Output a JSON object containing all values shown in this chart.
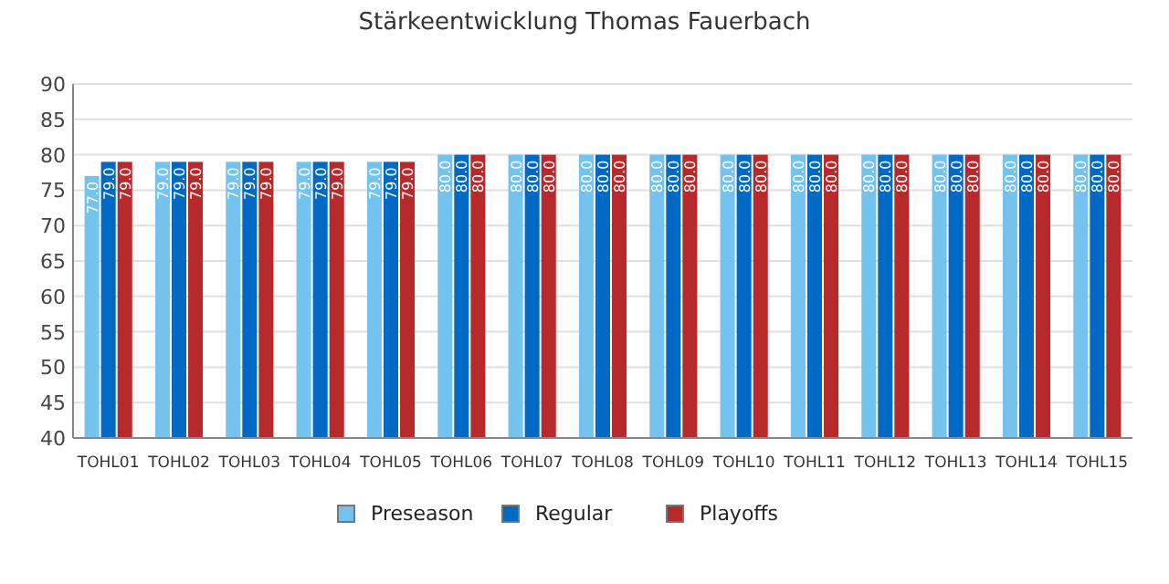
{
  "chart_data": {
    "type": "bar",
    "title": "Stärkeentwicklung Thomas Fauerbach",
    "categories": [
      "TOHL01",
      "TOHL02",
      "TOHL03",
      "TOHL04",
      "TOHL05",
      "TOHL06",
      "TOHL07",
      "TOHL08",
      "TOHL09",
      "TOHL10",
      "TOHL11",
      "TOHL12",
      "TOHL13",
      "TOHL14",
      "TOHL15"
    ],
    "series": [
      {
        "name": "Preseason",
        "color": "#74c3ef",
        "values": [
          77,
          79,
          79,
          79,
          79,
          80,
          80,
          80,
          80,
          80,
          80,
          80,
          80,
          80,
          80
        ],
        "value_labels": [
          "77.0",
          "79.0",
          "79.0",
          "79.0",
          "79.0",
          "80.0",
          "80.0",
          "80.0",
          "80.0",
          "80.0",
          "80.0",
          "80.0",
          "80.0",
          "80.0",
          "80.0"
        ]
      },
      {
        "name": "Regular",
        "color": "#0069c3",
        "values": [
          79,
          79,
          79,
          79,
          79,
          80,
          80,
          80,
          80,
          80,
          80,
          80,
          80,
          80,
          80
        ],
        "value_labels": [
          "79.0",
          "79.0",
          "79.0",
          "79.0",
          "79.0",
          "80.0",
          "80.0",
          "80.0",
          "80.0",
          "80.0",
          "80.0",
          "80.0",
          "80.0",
          "80.0",
          "80.0"
        ]
      },
      {
        "name": "Playoffs",
        "color": "#b8292b",
        "values": [
          79,
          79,
          79,
          79,
          79,
          80,
          80,
          80,
          80,
          80,
          80,
          80,
          80,
          80,
          80
        ],
        "value_labels": [
          "79.0",
          "79.0",
          "79.0",
          "79.0",
          "79.0",
          "80.0",
          "80.0",
          "80.0",
          "80.0",
          "80.0",
          "80.0",
          "80.0",
          "80.0",
          "80.0",
          "80.0"
        ]
      }
    ],
    "ylim": [
      40,
      90
    ],
    "yticks": [
      40,
      45,
      50,
      55,
      60,
      65,
      70,
      75,
      80,
      85,
      90
    ],
    "grid": "y",
    "legend": "bottom"
  }
}
